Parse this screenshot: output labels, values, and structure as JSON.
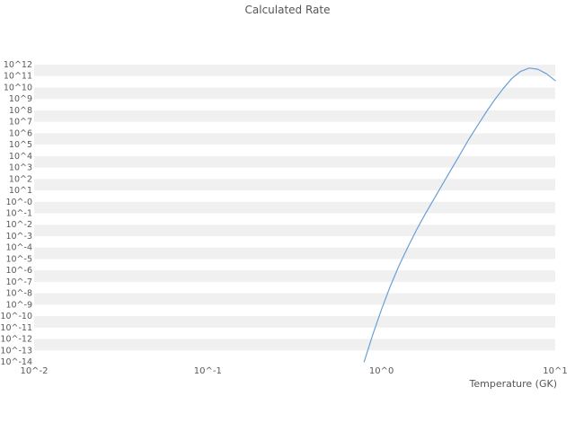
{
  "chart_data": {
    "type": "line",
    "title": "Calculated Rate",
    "xlabel": "Temperature (GK)",
    "ylabel": "",
    "x_scale": "log",
    "y_scale": "log",
    "x_log_range": [
      -2,
      1
    ],
    "y_log_range": [
      -14,
      12
    ],
    "x_ticks": [
      {
        "label": "10^-2",
        "log": -2
      },
      {
        "label": "10^-1",
        "log": -1
      },
      {
        "label": "10^0",
        "log": 0
      },
      {
        "label": "10^1",
        "log": 1
      }
    ],
    "y_tick_labels": [
      "10^12",
      "10^11",
      "10^10",
      "10^9",
      "10^8",
      "10^7",
      "10^6",
      "10^5",
      "10^4",
      "10^3",
      "10^2",
      "10^1",
      "10^-0",
      "10^-1",
      "10^-2",
      "10^-3",
      "10^-4",
      "10^-5",
      "10^-6",
      "10^-7",
      "10^-8",
      "10^-9",
      "10^-10",
      "10^-11",
      "10^-12",
      "10^-13",
      "10^-14"
    ],
    "grid": "horizontal-bands",
    "legend": "none",
    "colors": {
      "line": "#6a9fd8",
      "band": "#f0f0f0",
      "text": "#595959"
    },
    "series": [
      {
        "name": "calculated-rate",
        "points_log10": [
          [
            -0.1,
            -14.0
          ],
          [
            -0.05,
            -11.6
          ],
          [
            0.0,
            -9.4
          ],
          [
            0.05,
            -7.4
          ],
          [
            0.1,
            -5.6
          ],
          [
            0.15,
            -4.0
          ],
          [
            0.2,
            -2.5
          ],
          [
            0.25,
            -1.1
          ],
          [
            0.3,
            0.2
          ],
          [
            0.35,
            1.5
          ],
          [
            0.4,
            2.8
          ],
          [
            0.45,
            4.1
          ],
          [
            0.5,
            5.4
          ],
          [
            0.55,
            6.6
          ],
          [
            0.6,
            7.8
          ],
          [
            0.65,
            8.9
          ],
          [
            0.7,
            9.9
          ],
          [
            0.75,
            10.8
          ],
          [
            0.8,
            11.4
          ],
          [
            0.85,
            11.7
          ],
          [
            0.9,
            11.6
          ],
          [
            0.95,
            11.2
          ],
          [
            1.0,
            10.6
          ]
        ]
      }
    ]
  }
}
